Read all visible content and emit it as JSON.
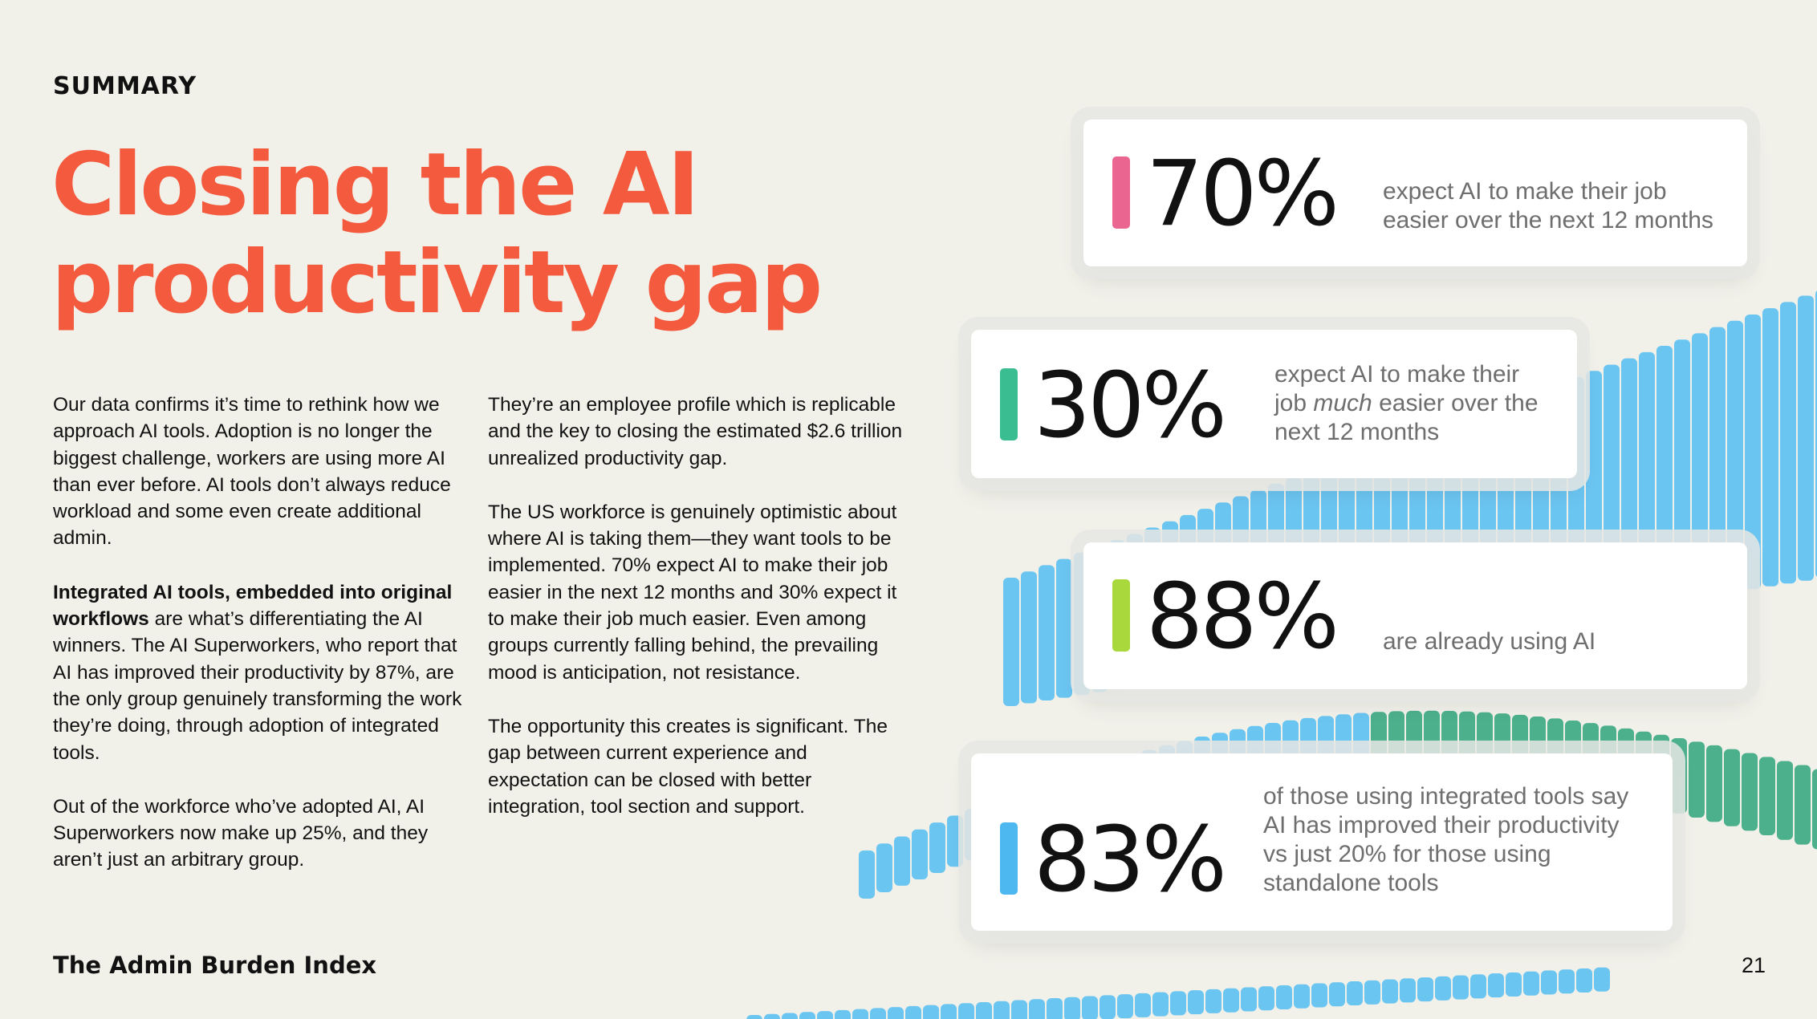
{
  "header": {
    "section": "SUMMARY",
    "title": [
      "Closing the AI",
      "productivity gap"
    ]
  },
  "columns": [
    [
      [
        "Our data confirms it’s time to rethink how we approach AI tools. Adoption is no longer the biggest challenge, workers are using more AI than ever before. AI tools don’t always reduce workload and some even create additional admin."
      ],
      [
        "Integrated AI tools, embedded into original workflows",
        " are what’s differentiating the AI winners. The AI Superworkers, who report that AI has improved their productivity by 87%, are the only group genuinely transforming the work they’re doing, through adoption of integrated tools."
      ],
      [
        "Out of the workforce who’ve adopted AI, AI Superworkers now make up 25%, and they aren’t just an arbitrary group."
      ]
    ],
    [
      [
        "They’re an employee profile which is replicable and the key to closing the estimated $2.6 trillion unrealized productivity gap."
      ],
      [
        "The US workforce is genuinely optimistic about where AI is taking them—they want tools to be implemented. 70% expect AI to make their job easier in the next 12 months and 30% expect it to make their job much easier. Even among groups currently falling behind, the prevailing mood is anticipation, not resistance."
      ],
      [
        "The opportunity this creates is significant. The gap between current experience and expectation can be closed with better integration, tool section and support."
      ]
    ]
  ],
  "stats": [
    {
      "value": "70%",
      "accent": "#ea6690",
      "description": [
        "expect AI to make their job easier over the next 12 months"
      ]
    },
    {
      "value": "30%",
      "accent": "#3bbd92",
      "description": [
        "expect AI to make their job ",
        "much",
        " easier over the next 12 months"
      ]
    },
    {
      "value": "88%",
      "accent": "#a9d83c",
      "description": [
        "are already using AI"
      ]
    },
    {
      "value": "83%",
      "accent": "#4db8f0",
      "description": [
        "of those using integrated tools say AI has improved their productivity vs just 20% for those using standalone tools"
      ]
    }
  ],
  "footer": {
    "title": "The Admin Burden Index",
    "page": "21"
  }
}
